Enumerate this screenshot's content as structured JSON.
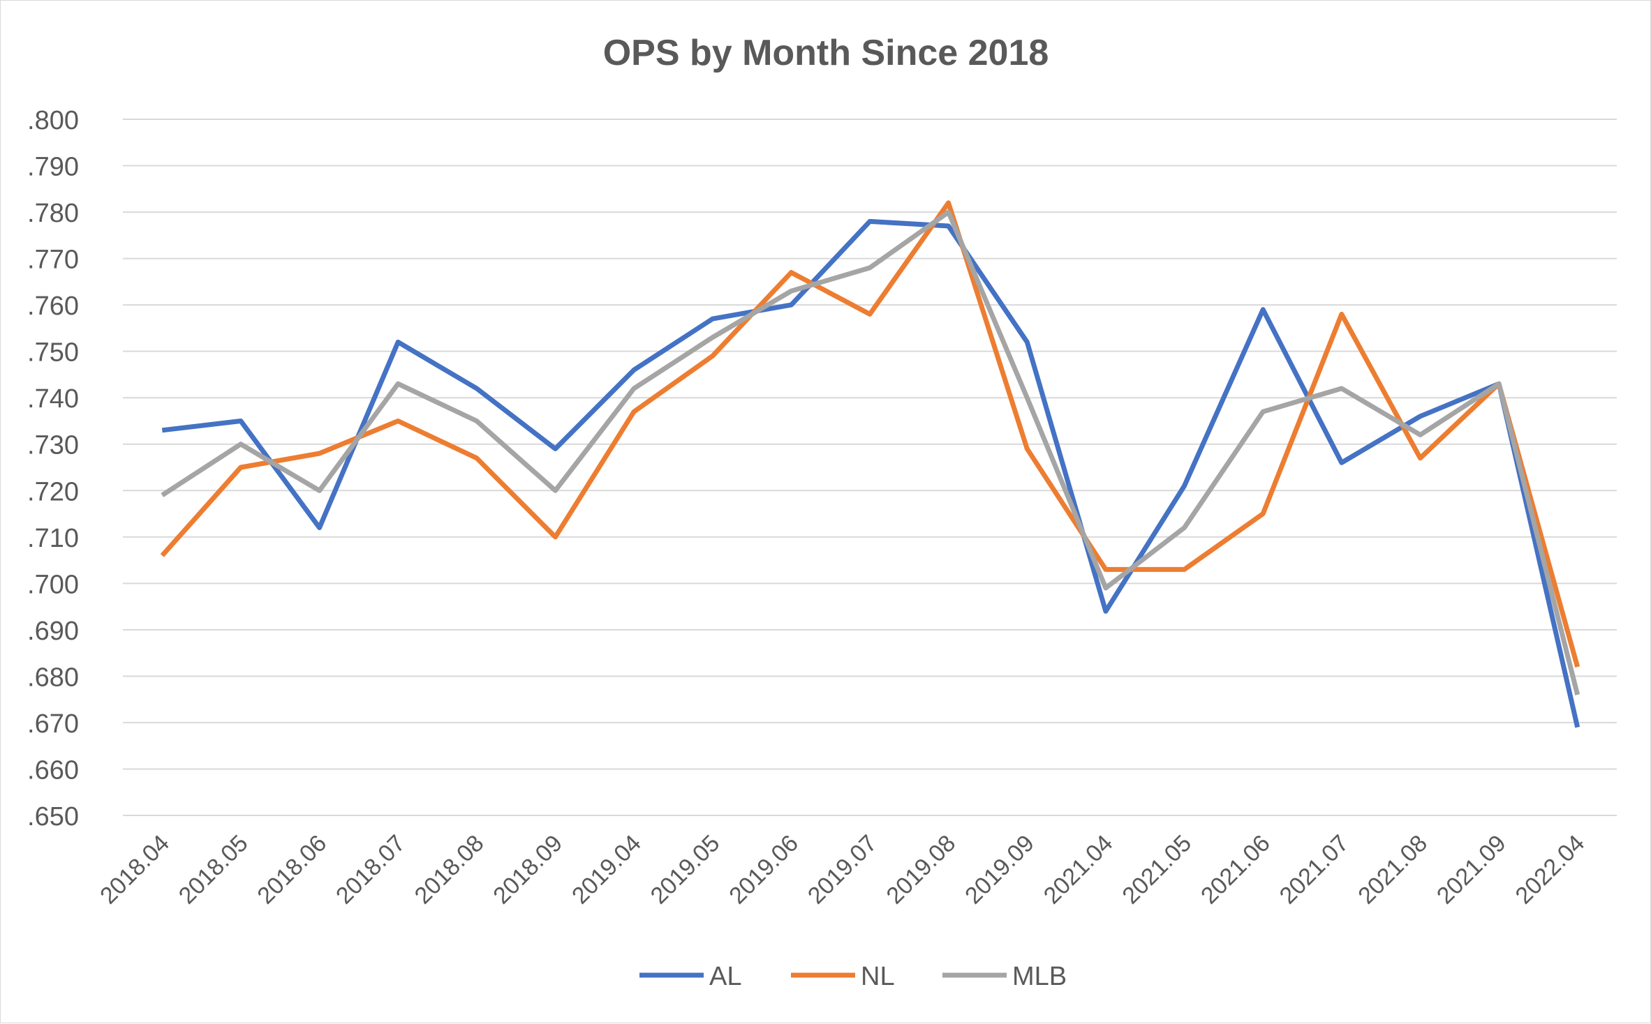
{
  "chart_data": {
    "type": "line",
    "title": "OPS by Month Since 2018",
    "xlabel": "",
    "ylabel": "",
    "categories": [
      "2018.04",
      "2018.05",
      "2018.06",
      "2018.07",
      "2018.08",
      "2018.09",
      "2019.04",
      "2019.05",
      "2019.06",
      "2019.07",
      "2019.08",
      "2019.09",
      "2021.04",
      "2021.05",
      "2021.06",
      "2021.07",
      "2021.08",
      "2021.09",
      "2022.04"
    ],
    "series": [
      {
        "name": "AL",
        "color": "#4472C4",
        "values": [
          0.733,
          0.735,
          0.712,
          0.752,
          0.742,
          0.729,
          0.746,
          0.757,
          0.76,
          0.778,
          0.777,
          0.752,
          0.694,
          0.721,
          0.759,
          0.726,
          0.736,
          0.743,
          0.669
        ]
      },
      {
        "name": "NL",
        "color": "#ED7D31",
        "values": [
          0.706,
          0.725,
          0.728,
          0.735,
          0.727,
          0.71,
          0.737,
          0.749,
          0.767,
          0.758,
          0.782,
          0.729,
          0.703,
          0.703,
          0.715,
          0.758,
          0.727,
          0.743,
          0.682
        ]
      },
      {
        "name": "MLB",
        "color": "#A5A5A5",
        "values": [
          0.719,
          0.73,
          0.72,
          0.743,
          0.735,
          0.72,
          0.742,
          0.753,
          0.763,
          0.768,
          0.78,
          0.74,
          0.699,
          0.712,
          0.737,
          0.742,
          0.732,
          0.743,
          0.676
        ]
      }
    ],
    "ylim": [
      0.65,
      0.8
    ],
    "yticks": [
      ".800",
      ".790",
      ".780",
      ".770",
      ".760",
      ".750",
      ".740",
      ".730",
      ".720",
      ".710",
      ".700",
      ".690",
      ".680",
      ".670",
      ".660",
      ".650"
    ],
    "grid": true,
    "legend": "bottom"
  }
}
